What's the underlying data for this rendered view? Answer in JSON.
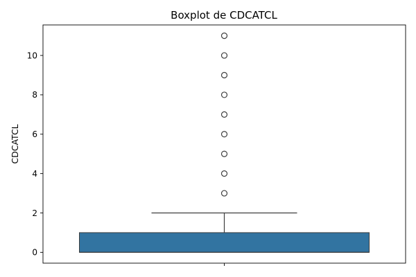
{
  "chart_data": {
    "type": "boxplot",
    "title": "Boxplot de CDCATCL",
    "ylabel": "CDCATCL",
    "xlabel": "",
    "ylim": [
      -0.55,
      11.55
    ],
    "yticks": [
      0,
      2,
      4,
      6,
      8,
      10
    ],
    "box": {
      "q1": 0,
      "median": 0,
      "q3": 1,
      "whisker_low": 0,
      "whisker_high": 2,
      "color": "#3274a1"
    },
    "outliers": [
      3,
      4,
      5,
      6,
      7,
      8,
      9,
      10,
      11
    ],
    "grid": false
  }
}
